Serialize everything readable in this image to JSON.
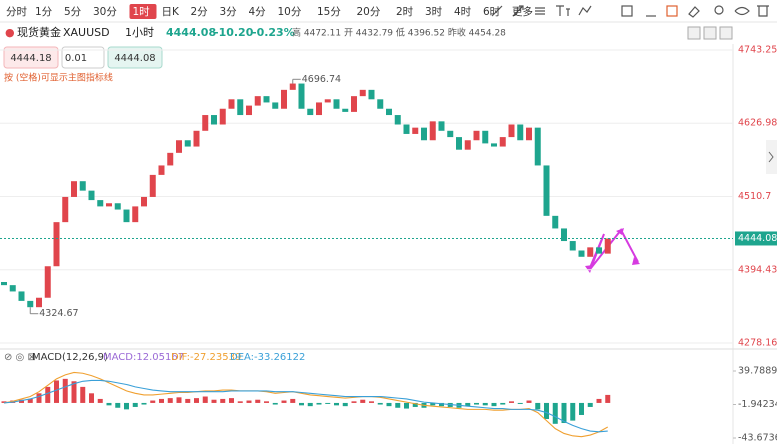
{
  "toolbar": {
    "periods": [
      "分时",
      "1分",
      "5分",
      "30分",
      "1时",
      "日K",
      "2分",
      "3分",
      "4分",
      "10分",
      "15分",
      "20分",
      "2时",
      "3时",
      "4时",
      "6时",
      "更多"
    ],
    "active": 4
  },
  "header": {
    "name": "现货黄金",
    "symbol": "XAUUSD",
    "interval": "1小时",
    "price": "4444.08",
    "change": "-10.20",
    "change_pct": "-0.23%",
    "stats": "高 4472.11 开 4432.79 低 4396.52 昨收 4454.28"
  },
  "order": {
    "sell": "4444.18",
    "qty": "0.01",
    "buy": "4444.08"
  },
  "hint": "按 (空格)可显示主图指标线",
  "chart_data": [
    {
      "type": "candlestick",
      "up_color": "#e0454c",
      "down_color": "#1ea58e",
      "first_open": 4375,
      "close": [
        4370,
        4360,
        4345,
        4335,
        4350,
        4400,
        4470,
        4510,
        4535,
        4520,
        4505,
        4495,
        4500,
        4490,
        4470,
        4495,
        4510,
        4545,
        4560,
        4580,
        4600,
        4590,
        4615,
        4640,
        4625,
        4650,
        4665,
        4640,
        4655,
        4670,
        4660,
        4650,
        4680,
        4690,
        4650,
        4640,
        4660,
        4665,
        4650,
        4645,
        4670,
        4680,
        4665,
        4650,
        4640,
        4625,
        4610,
        4620,
        4600,
        4630,
        4615,
        4605,
        4585,
        4600,
        4615,
        4595,
        4590,
        4605,
        4625,
        4600,
        4620,
        4560,
        4480,
        4460,
        4440,
        4425,
        4415,
        4430,
        4420,
        4444.08
      ],
      "ylim": [
        4278.16,
        4743.25
      ],
      "yticks": [
        4278.16,
        4394.43,
        4510.7,
        4626.98,
        4743.25
      ],
      "last_price": {
        "value": 4444.08,
        "label": "4444.08"
      },
      "annotations": [
        {
          "value": 4696.74,
          "index": 33,
          "label": "4696.74"
        },
        {
          "value": 4324.67,
          "index": 3,
          "label": "4324.67"
        }
      ]
    },
    {
      "type": "macd",
      "title": "MACD(12,26,9)",
      "macd_label": "MACD:12.05167",
      "dif_label": "DIF:-27.23539",
      "dea_label": "DEA:-33.26122",
      "dif_color": "#f0a030",
      "dea_color": "#3aa0d8",
      "hist": [
        2,
        3,
        4,
        5,
        12,
        20,
        28,
        30,
        27,
        20,
        12,
        5,
        -3,
        -6,
        -8,
        -5,
        -2,
        3,
        5,
        6,
        7,
        5,
        6,
        8,
        4,
        5,
        6,
        2,
        3,
        4,
        2,
        -2,
        3,
        5,
        -3,
        -4,
        -2,
        -1,
        -3,
        -4,
        2,
        4,
        2,
        -2,
        -4,
        -6,
        -7,
        -5,
        -6,
        -3,
        -4,
        -5,
        -6,
        -4,
        -2,
        -3,
        -4,
        -2,
        2,
        -1,
        3,
        -8,
        -20,
        -26,
        -25,
        -22,
        -15,
        -5,
        5,
        10
      ],
      "dif": [
        0,
        2,
        5,
        8,
        14,
        22,
        30,
        35,
        38,
        37,
        34,
        30,
        25,
        20,
        15,
        12,
        10,
        10,
        11,
        12,
        13,
        13,
        14,
        15,
        15,
        16,
        16,
        15,
        15,
        15,
        14,
        12,
        13,
        14,
        12,
        10,
        9,
        8,
        7,
        6,
        7,
        8,
        8,
        7,
        5,
        3,
        1,
        -1,
        -3,
        -4,
        -5,
        -6,
        -7,
        -8,
        -8,
        -8,
        -9,
        -9,
        -8,
        -8,
        -7,
        -12,
        -22,
        -32,
        -38,
        -41,
        -42,
        -40,
        -36,
        -30
      ],
      "dea": [
        0,
        1,
        3,
        5,
        8,
        12,
        16,
        20,
        24,
        27,
        28,
        28,
        27,
        25,
        23,
        20,
        18,
        16,
        15,
        14,
        14,
        14,
        14,
        14,
        14,
        14,
        15,
        15,
        15,
        15,
        15,
        14,
        14,
        14,
        13,
        12,
        11,
        10,
        9,
        8,
        8,
        8,
        8,
        8,
        7,
        6,
        5,
        3,
        1,
        0,
        -1,
        -2,
        -3,
        -4,
        -5,
        -6,
        -7,
        -7,
        -8,
        -8,
        -8,
        -9,
        -12,
        -17,
        -23,
        -28,
        -32,
        -35,
        -36,
        -35
      ],
      "ylim": [
        -43.67367,
        39.78899
      ],
      "yticks": [
        -43.67367,
        -1.94234,
        39.78899
      ]
    }
  ]
}
